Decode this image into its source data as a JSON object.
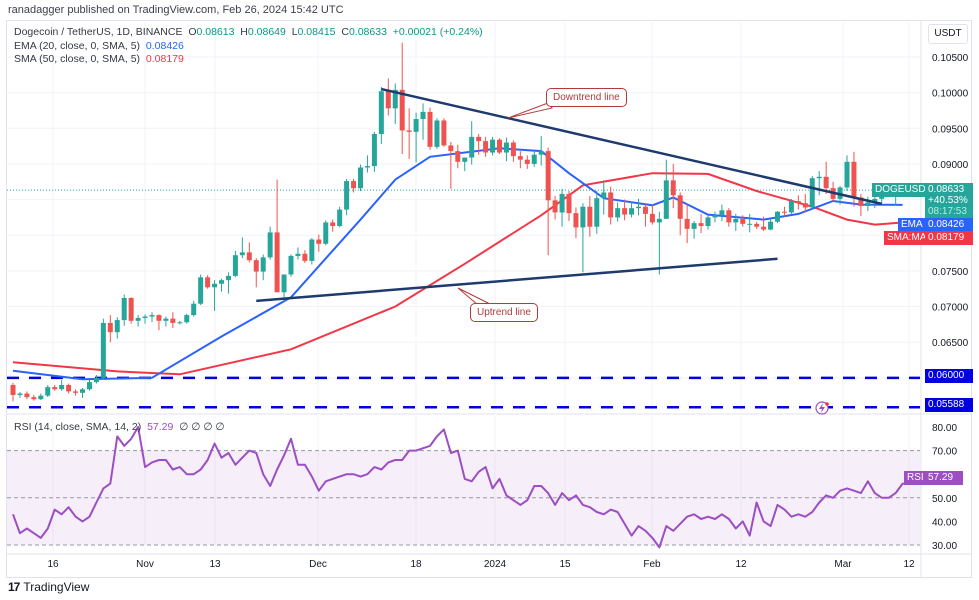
{
  "header": {
    "publisher": "ranadagger published on TradingView.com, Feb 26, 2024 15:42 UTC",
    "symbol_line": "Dogecoin / TetherUS, 1D, BINANCE",
    "open_label": "O",
    "open": "0.08613",
    "high_label": "H",
    "high": "0.08649",
    "low_label": "L",
    "low": "0.08415",
    "close_label": "C",
    "close": "0.08633",
    "change": "+0.00021 (+0.24%)",
    "ema_label": "EMA (20, close, 0, SMA, 5)",
    "ema_value": "0.08426",
    "sma_label": "SMA (50, close, 0, SMA, 5)",
    "sma_value": "0.08179",
    "rsi_label": "RSI (14, close, SMA, 14, 2)",
    "rsi_value": "57.29",
    "rsi_extra": "∅ ∅ ∅ ∅"
  },
  "price_axis": {
    "currency": "USDT",
    "ticks": [
      "0.10500",
      "0.10000",
      "0.09500",
      "0.09000",
      "0.07500",
      "0.07000",
      "0.06500"
    ],
    "last_price_tag": {
      "symbol": "DOGEUSDT",
      "price": "0.08633",
      "change_pct": "+40.53%",
      "countdown": "08:17:53"
    },
    "ema_tag": {
      "label": "EMA",
      "value": "0.08426"
    },
    "sma_tag": {
      "label": "SMA:MA",
      "value": "0.08179"
    },
    "level_tags": [
      "0.06000",
      "0.05588"
    ]
  },
  "rsi_axis": {
    "ticks": [
      "80.00",
      "70.00",
      "60.00",
      "50.00",
      "40.00",
      "30.00"
    ],
    "tag_label": "RSI",
    "tag_value": "57.29"
  },
  "time_axis": {
    "ticks": [
      "16",
      "Nov",
      "13",
      "Dec",
      "18",
      "2024",
      "15",
      "Feb",
      "12",
      "Mar",
      "12"
    ]
  },
  "annotations": {
    "downtrend": "Downtrend line",
    "uptrend": "Uptrend line"
  },
  "footer": {
    "brand": "TradingView"
  },
  "colors": {
    "up": "#26a69a",
    "down": "#ef5350",
    "ema": "#2962ff",
    "sma": "#f23645",
    "rsi": "#9c4ec2",
    "trend": "#1e3a6e",
    "level": "#0000e0",
    "tag_green": "#26a69a"
  },
  "chart_data": {
    "type": "candlestick",
    "title": "Dogecoin / TetherUS, 1D, BINANCE",
    "ylabel": "USDT",
    "ylim": [
      0.055,
      0.107
    ],
    "x_ticks": [
      "16",
      "Nov",
      "13",
      "Dec",
      "18",
      "2024",
      "15",
      "Feb",
      "12",
      "Mar",
      "12"
    ],
    "candles": [
      [
        0.059,
        0.0593,
        0.0567,
        0.0576
      ],
      [
        0.0576,
        0.058,
        0.0572,
        0.0578
      ],
      [
        0.0578,
        0.0581,
        0.057,
        0.0573
      ],
      [
        0.0573,
        0.0576,
        0.0568,
        0.057
      ],
      [
        0.057,
        0.0578,
        0.0569,
        0.0575
      ],
      [
        0.0575,
        0.059,
        0.0573,
        0.0587
      ],
      [
        0.0587,
        0.059,
        0.0582,
        0.0584
      ],
      [
        0.0584,
        0.0597,
        0.0582,
        0.059
      ],
      [
        0.059,
        0.0592,
        0.0578,
        0.0581
      ],
      [
        0.0581,
        0.0584,
        0.0575,
        0.0579
      ],
      [
        0.0579,
        0.0586,
        0.0572,
        0.0584
      ],
      [
        0.0584,
        0.0597,
        0.0582,
        0.0594
      ],
      [
        0.0594,
        0.0604,
        0.0592,
        0.06
      ],
      [
        0.06,
        0.0683,
        0.0598,
        0.0677
      ],
      [
        0.0677,
        0.0688,
        0.065,
        0.0664
      ],
      [
        0.0664,
        0.0685,
        0.0655,
        0.0681
      ],
      [
        0.0681,
        0.0717,
        0.0673,
        0.0712
      ],
      [
        0.0712,
        0.0713,
        0.0676,
        0.068
      ],
      [
        0.068,
        0.0688,
        0.0672,
        0.0684
      ],
      [
        0.0684,
        0.0689,
        0.0676,
        0.0686
      ],
      [
        0.0686,
        0.0692,
        0.0678,
        0.0688
      ],
      [
        0.0688,
        0.0689,
        0.0667,
        0.068
      ],
      [
        0.068,
        0.0686,
        0.0672,
        0.0683
      ],
      [
        0.0683,
        0.0692,
        0.067,
        0.0677
      ],
      [
        0.0677,
        0.068,
        0.0675,
        0.0678
      ],
      [
        0.0678,
        0.069,
        0.0676,
        0.0688
      ],
      [
        0.0688,
        0.0708,
        0.0686,
        0.0704
      ],
      [
        0.0704,
        0.0745,
        0.0702,
        0.0741
      ],
      [
        0.0741,
        0.0744,
        0.0725,
        0.0727
      ],
      [
        0.0727,
        0.0737,
        0.0694,
        0.0732
      ],
      [
        0.0732,
        0.0739,
        0.0721,
        0.0737
      ],
      [
        0.0737,
        0.0748,
        0.0718,
        0.0743
      ],
      [
        0.0743,
        0.0778,
        0.0741,
        0.0772
      ],
      [
        0.0772,
        0.0797,
        0.0768,
        0.0776
      ],
      [
        0.0776,
        0.079,
        0.0762,
        0.0765
      ],
      [
        0.0765,
        0.0768,
        0.0727,
        0.0749
      ],
      [
        0.0749,
        0.0773,
        0.0737,
        0.0769
      ],
      [
        0.0769,
        0.0812,
        0.0766,
        0.0804
      ],
      [
        0.0804,
        0.0878,
        0.0757,
        0.072
      ],
      [
        0.072,
        0.0742,
        0.0706,
        0.0745
      ],
      [
        0.0745,
        0.0773,
        0.0742,
        0.0771
      ],
      [
        0.0771,
        0.0783,
        0.0766,
        0.0774
      ],
      [
        0.0774,
        0.0779,
        0.0761,
        0.0764
      ],
      [
        0.0764,
        0.0796,
        0.0759,
        0.0794
      ],
      [
        0.0794,
        0.0801,
        0.0777,
        0.0788
      ],
      [
        0.0788,
        0.0821,
        0.0786,
        0.0818
      ],
      [
        0.0818,
        0.0822,
        0.0805,
        0.0813
      ],
      [
        0.0813,
        0.084,
        0.0811,
        0.0836
      ],
      [
        0.0836,
        0.0879,
        0.0828,
        0.0876
      ],
      [
        0.0876,
        0.0879,
        0.086,
        0.0866
      ],
      [
        0.0866,
        0.0899,
        0.0862,
        0.0895
      ],
      [
        0.0895,
        0.0912,
        0.0888,
        0.0897
      ],
      [
        0.0897,
        0.0945,
        0.0889,
        0.0942
      ],
      [
        0.0942,
        0.1008,
        0.0928,
        0.1002
      ],
      [
        0.1002,
        0.102,
        0.0968,
        0.0978
      ],
      [
        0.0978,
        0.1013,
        0.0956,
        0.1004
      ],
      [
        0.1004,
        0.107,
        0.0914,
        0.0947
      ],
      [
        0.0947,
        0.0978,
        0.0907,
        0.0945
      ],
      [
        0.0945,
        0.0972,
        0.0902,
        0.0963
      ],
      [
        0.0963,
        0.0985,
        0.0934,
        0.0973
      ],
      [
        0.0973,
        0.0979,
        0.092,
        0.0924
      ],
      [
        0.0924,
        0.0964,
        0.0921,
        0.0961
      ],
      [
        0.0961,
        0.0964,
        0.0924,
        0.0926
      ],
      [
        0.0926,
        0.0931,
        0.0865,
        0.0918
      ],
      [
        0.0918,
        0.0927,
        0.0894,
        0.0903
      ],
      [
        0.0903,
        0.0908,
        0.089,
        0.0909
      ],
      [
        0.0909,
        0.096,
        0.0899,
        0.0938
      ],
      [
        0.0938,
        0.0942,
        0.0913,
        0.0932
      ],
      [
        0.0932,
        0.0938,
        0.091,
        0.0916
      ],
      [
        0.0916,
        0.0938,
        0.0912,
        0.0934
      ],
      [
        0.0934,
        0.0936,
        0.0914,
        0.0916
      ],
      [
        0.0916,
        0.0937,
        0.0904,
        0.093
      ],
      [
        0.093,
        0.0933,
        0.0903,
        0.0911
      ],
      [
        0.0911,
        0.0918,
        0.0894,
        0.0906
      ],
      [
        0.0906,
        0.0912,
        0.0893,
        0.09
      ],
      [
        0.09,
        0.0918,
        0.0896,
        0.0913
      ],
      [
        0.0913,
        0.0939,
        0.0898,
        0.0918
      ],
      [
        0.0918,
        0.0923,
        0.0772,
        0.0849
      ],
      [
        0.0849,
        0.0855,
        0.0822,
        0.0832
      ],
      [
        0.0832,
        0.0865,
        0.0812,
        0.0858
      ],
      [
        0.0858,
        0.0862,
        0.082,
        0.0831
      ],
      [
        0.0831,
        0.0839,
        0.0796,
        0.0811
      ],
      [
        0.0811,
        0.0845,
        0.0748,
        0.084
      ],
      [
        0.084,
        0.0855,
        0.0798,
        0.0812
      ],
      [
        0.0812,
        0.0862,
        0.0802,
        0.0852
      ],
      [
        0.0852,
        0.0877,
        0.0829,
        0.086
      ],
      [
        0.086,
        0.0868,
        0.0815,
        0.0825
      ],
      [
        0.0825,
        0.0846,
        0.0819,
        0.0838
      ],
      [
        0.0838,
        0.085,
        0.0821,
        0.0829
      ],
      [
        0.0829,
        0.0847,
        0.0825,
        0.0838
      ],
      [
        0.0838,
        0.0851,
        0.0828,
        0.084
      ],
      [
        0.084,
        0.0845,
        0.0812,
        0.083
      ],
      [
        0.083,
        0.0843,
        0.0815,
        0.0818
      ],
      [
        0.0818,
        0.0833,
        0.0745,
        0.0823
      ],
      [
        0.0823,
        0.0906,
        0.0823,
        0.0877
      ],
      [
        0.0877,
        0.09,
        0.0838,
        0.0856
      ],
      [
        0.0856,
        0.086,
        0.08,
        0.0823
      ],
      [
        0.0823,
        0.0844,
        0.0789,
        0.0809
      ],
      [
        0.0809,
        0.082,
        0.0795,
        0.0817
      ],
      [
        0.0817,
        0.083,
        0.0803,
        0.0813
      ],
      [
        0.0813,
        0.0828,
        0.0808,
        0.0825
      ],
      [
        0.0825,
        0.0833,
        0.0818,
        0.0828
      ],
      [
        0.0828,
        0.0843,
        0.082,
        0.0835
      ],
      [
        0.0835,
        0.0838,
        0.0812,
        0.0818
      ],
      [
        0.0818,
        0.083,
        0.0806,
        0.0823
      ],
      [
        0.0823,
        0.0828,
        0.0812,
        0.0816
      ],
      [
        0.0816,
        0.083,
        0.0804,
        0.0816
      ],
      [
        0.0816,
        0.0819,
        0.0809,
        0.0812
      ],
      [
        0.0812,
        0.0826,
        0.0806,
        0.0808
      ],
      [
        0.0808,
        0.0823,
        0.0807,
        0.0819
      ],
      [
        0.0819,
        0.0834,
        0.0817,
        0.0833
      ],
      [
        0.0833,
        0.084,
        0.0826,
        0.0832
      ],
      [
        0.0832,
        0.0851,
        0.083,
        0.0848
      ],
      [
        0.0848,
        0.0856,
        0.0836,
        0.0845
      ],
      [
        0.0845,
        0.0858,
        0.0832,
        0.0839
      ],
      [
        0.0839,
        0.0883,
        0.0837,
        0.088
      ],
      [
        0.088,
        0.089,
        0.0856,
        0.0882
      ],
      [
        0.0882,
        0.0903,
        0.0858,
        0.0866
      ],
      [
        0.0866,
        0.0875,
        0.0847,
        0.0851
      ],
      [
        0.0851,
        0.0869,
        0.0843,
        0.0867
      ],
      [
        0.0867,
        0.0912,
        0.0862,
        0.0903
      ],
      [
        0.0903,
        0.0917,
        0.084,
        0.0853
      ],
      [
        0.0853,
        0.0858,
        0.0827,
        0.0841
      ],
      [
        0.0841,
        0.0854,
        0.0834,
        0.0846
      ],
      [
        0.0846,
        0.0858,
        0.0838,
        0.0851
      ],
      [
        0.0851,
        0.0865,
        0.0845,
        0.0862
      ],
      [
        0.0862,
        0.0865,
        0.0855,
        0.0861
      ],
      [
        0.0861,
        0.0865,
        0.0842,
        0.0863
      ]
    ],
    "ema20": {
      "name": "EMA (20)",
      "last": 0.08426,
      "points": [
        [
          0,
          0.061
        ],
        [
          10,
          0.0598
        ],
        [
          20,
          0.06
        ],
        [
          30,
          0.0658
        ],
        [
          40,
          0.0713
        ],
        [
          50,
          0.0822
        ],
        [
          55,
          0.0878
        ],
        [
          60,
          0.091
        ],
        [
          70,
          0.0922
        ],
        [
          76,
          0.0918
        ],
        [
          80,
          0.0887
        ],
        [
          85,
          0.0852
        ],
        [
          92,
          0.0842
        ],
        [
          95,
          0.0853
        ],
        [
          100,
          0.0829
        ],
        [
          108,
          0.0822
        ],
        [
          113,
          0.083
        ],
        [
          118,
          0.0848
        ],
        [
          122,
          0.0843
        ],
        [
          128,
          0.08426
        ]
      ]
    },
    "sma50": {
      "name": "SMA (50)",
      "last": 0.08179,
      "points": [
        [
          0,
          0.0622
        ],
        [
          15,
          0.0609
        ],
        [
          24,
          0.0605
        ],
        [
          40,
          0.064
        ],
        [
          55,
          0.07
        ],
        [
          65,
          0.076
        ],
        [
          76,
          0.0828
        ],
        [
          82,
          0.087
        ],
        [
          92,
          0.0887
        ],
        [
          100,
          0.0886
        ],
        [
          107,
          0.0862
        ],
        [
          115,
          0.084
        ],
        [
          120,
          0.0822
        ],
        [
          124,
          0.0815
        ],
        [
          128,
          0.08179
        ]
      ]
    },
    "trendlines": [
      {
        "name": "Downtrend line",
        "from": [
          53,
          0.1005
        ],
        "to": [
          125,
          0.0844
        ]
      },
      {
        "name": "Uptrend line",
        "from": [
          35,
          0.0708
        ],
        "to": [
          110,
          0.0767
        ]
      }
    ],
    "horizontal_levels": [
      0.06,
      0.05588
    ],
    "rsi": {
      "name": "RSI (14)",
      "ylim": [
        28,
        82
      ],
      "bands": [
        30,
        50,
        70
      ],
      "last": 57.29,
      "values": [
        43,
        35,
        37,
        35,
        33,
        37,
        45,
        43,
        46,
        42,
        40,
        42,
        48,
        54,
        56,
        76,
        72,
        75,
        80,
        63,
        65,
        66,
        66,
        62,
        63,
        60,
        60,
        62,
        66,
        73,
        67,
        69,
        64,
        67,
        70,
        69,
        60,
        55,
        62,
        68,
        75,
        64,
        64,
        59,
        53,
        57,
        58,
        59,
        60,
        60,
        59,
        60,
        63,
        62,
        65,
        66,
        66,
        70,
        70,
        71,
        72,
        76,
        79,
        69,
        70,
        58,
        57,
        61,
        63,
        54,
        58,
        51,
        49,
        47,
        49,
        55,
        55,
        52,
        47,
        52,
        49,
        51,
        47,
        46,
        44,
        43,
        45,
        44,
        39,
        34,
        38,
        36,
        33,
        29,
        38,
        36,
        39,
        42,
        43,
        41,
        42,
        41,
        43,
        41,
        37,
        40,
        34,
        48,
        40,
        38,
        47,
        45,
        42,
        43,
        42,
        44,
        48,
        51,
        50,
        53,
        54,
        53,
        52,
        57,
        52,
        50,
        50,
        52,
        56,
        56,
        57
      ]
    }
  }
}
